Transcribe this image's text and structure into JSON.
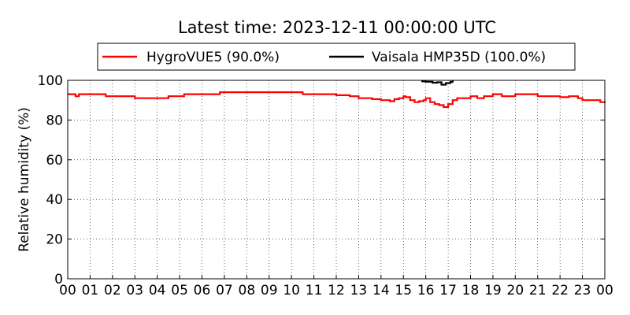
{
  "chart_data": {
    "type": "line",
    "title": "Latest time: 2023-12-11 00:00:00 UTC",
    "xlabel": "",
    "ylabel": "Relative humidity (%)",
    "xlim": [
      0,
      24
    ],
    "ylim": [
      0,
      100
    ],
    "x_ticks": [
      "00",
      "01",
      "02",
      "03",
      "04",
      "05",
      "06",
      "07",
      "08",
      "09",
      "10",
      "11",
      "12",
      "13",
      "14",
      "15",
      "16",
      "17",
      "18",
      "19",
      "20",
      "21",
      "22",
      "23",
      "00"
    ],
    "y_ticks": [
      0,
      20,
      40,
      60,
      80,
      100
    ],
    "grid": true,
    "legend_position": "top",
    "series": [
      {
        "name": "HygroVUE5 (90.0%)",
        "color": "#ff0000",
        "x": [
          0,
          0.3,
          0.35,
          0.5,
          1.6,
          1.7,
          2.9,
          3.0,
          4.4,
          4.5,
          5.0,
          5.2,
          6.6,
          6.8,
          10.4,
          10.5,
          11.8,
          12.0,
          12.4,
          12.6,
          12.9,
          13.0,
          13.5,
          13.6,
          14.0,
          14.2,
          14.4,
          14.6,
          14.8,
          15.0,
          15.1,
          15.3,
          15.5,
          15.7,
          15.9,
          16.0,
          16.2,
          16.4,
          16.6,
          16.8,
          17.0,
          17.2,
          17.4,
          17.8,
          18.0,
          18.3,
          18.6,
          18.8,
          19.0,
          19.4,
          19.7,
          20.0,
          20.8,
          21.0,
          21.4,
          21.8,
          22.0,
          22.4,
          22.8,
          23.0,
          23.4,
          23.6,
          23.8,
          24.0
        ],
        "y": [
          93,
          93,
          92,
          93,
          93,
          92,
          92,
          91,
          91,
          92,
          92,
          93,
          93,
          94,
          94,
          93,
          93,
          92.5,
          92.5,
          92,
          92,
          91,
          91,
          90.5,
          90,
          90,
          89.5,
          90.5,
          91,
          92,
          91.5,
          90,
          89,
          89.5,
          90,
          91,
          89,
          88,
          87.5,
          86.5,
          88,
          90,
          91,
          91,
          92,
          91,
          92,
          92,
          93,
          92,
          92,
          93,
          93,
          92,
          92,
          92,
          91.5,
          92,
          91,
          90,
          90,
          90,
          89,
          89.5
        ]
      },
      {
        "name": "Vaisala HMP35D (100.0%)",
        "color": "#000000",
        "x": [
          15.8,
          16.0,
          16.3,
          16.5,
          16.7,
          16.9,
          17.1,
          17.2
        ],
        "y": [
          99.5,
          99.3,
          98.8,
          99.0,
          97.8,
          98.6,
          99.2,
          99.8
        ]
      }
    ]
  }
}
